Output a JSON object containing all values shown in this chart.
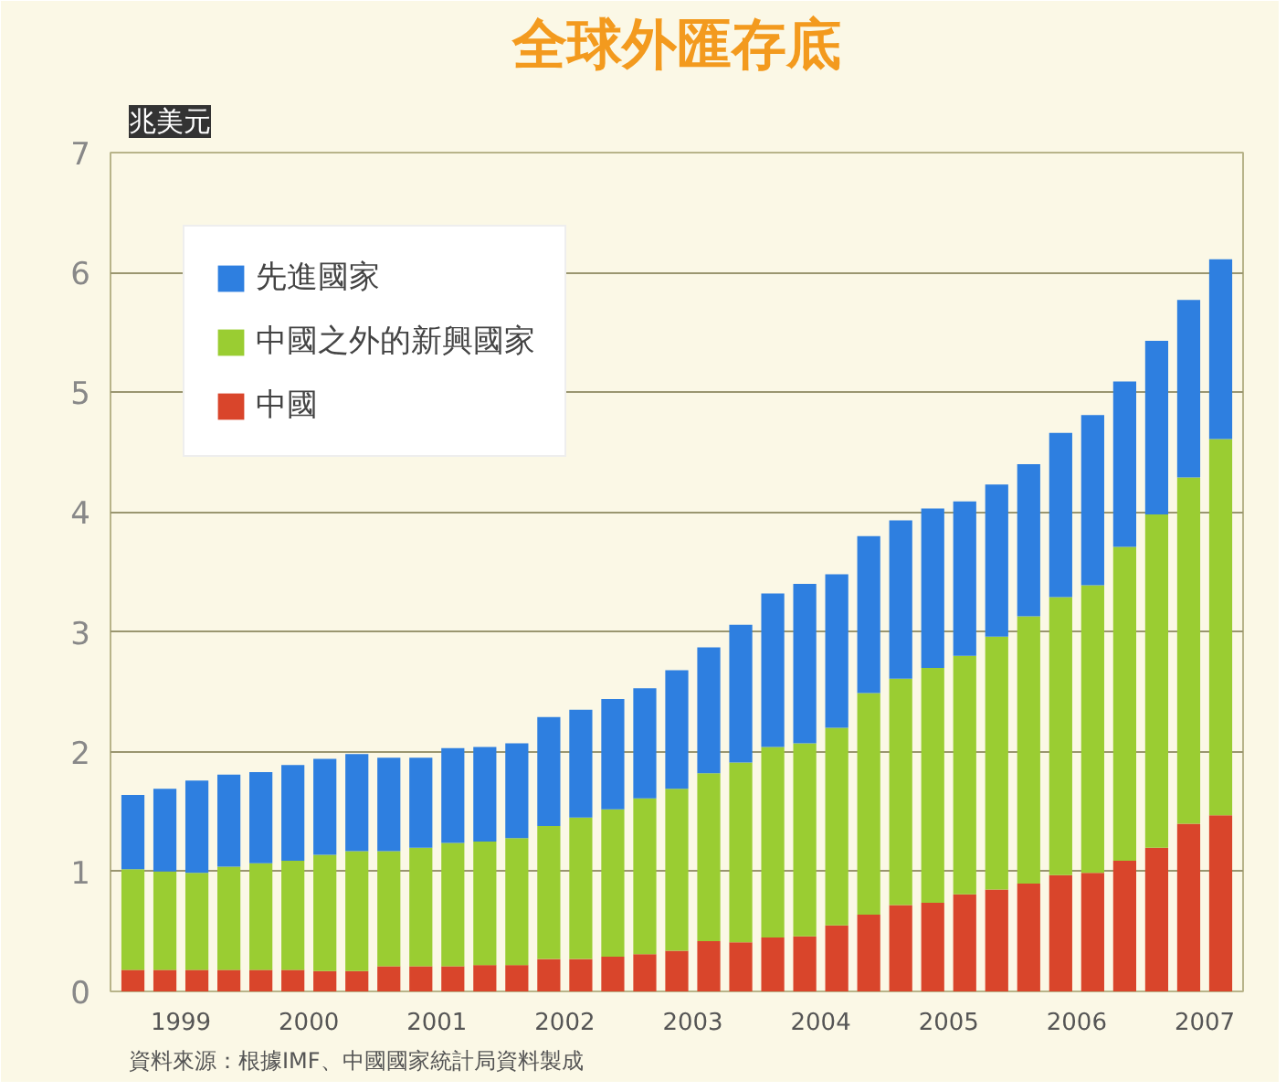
{
  "chart_data": {
    "type": "bar",
    "stacked": true,
    "title": "全球外匯存底",
    "ylabel": "兆美元",
    "x": [
      1999.125,
      1999.375,
      1999.625,
      1999.875,
      2000.125,
      2000.375,
      2000.625,
      2000.875,
      2001.125,
      2001.375,
      2001.625,
      2001.875,
      2002.125,
      2002.375,
      2002.625,
      2002.875,
      2003.125,
      2003.375,
      2003.625,
      2003.875,
      2004.125,
      2004.375,
      2004.625,
      2004.875,
      2005.125,
      2005.375,
      2005.625,
      2005.875,
      2006.125,
      2006.375,
      2006.625,
      2006.875,
      2007.125,
      2007.375,
      2007.625
    ],
    "series": [
      {
        "name": "中國",
        "color": "#d9452b",
        "values": [
          0.18,
          0.18,
          0.18,
          0.18,
          0.18,
          0.18,
          0.17,
          0.17,
          0.21,
          0.21,
          0.21,
          0.22,
          0.22,
          0.27,
          0.27,
          0.29,
          0.31,
          0.34,
          0.42,
          0.41,
          0.45,
          0.46,
          0.55,
          0.64,
          0.72,
          0.74,
          0.81,
          0.85,
          0.9,
          0.97,
          0.99,
          1.09,
          1.2,
          1.4,
          1.47
        ]
      },
      {
        "name": "中國之外的新興國家",
        "color": "#9acd32",
        "values": [
          0.84,
          0.82,
          0.81,
          0.86,
          0.89,
          0.91,
          0.97,
          1.0,
          0.96,
          0.99,
          1.03,
          1.03,
          1.06,
          1.11,
          1.18,
          1.23,
          1.3,
          1.35,
          1.4,
          1.5,
          1.59,
          1.61,
          1.65,
          1.85,
          1.89,
          1.96,
          1.99,
          2.11,
          2.23,
          2.32,
          2.4,
          2.62,
          2.78,
          2.89,
          3.14
        ]
      },
      {
        "name": "先進國家",
        "color": "#2e7fe0",
        "values": [
          0.62,
          0.69,
          0.77,
          0.77,
          0.76,
          0.8,
          0.8,
          0.81,
          0.78,
          0.75,
          0.79,
          0.79,
          0.79,
          0.91,
          0.9,
          0.92,
          0.92,
          0.99,
          1.05,
          1.15,
          1.28,
          1.33,
          1.28,
          1.31,
          1.32,
          1.33,
          1.29,
          1.27,
          1.27,
          1.37,
          1.42,
          1.38,
          1.45,
          1.48,
          1.5
        ]
      }
    ],
    "xlim": [
      1998.95,
      2007.8
    ],
    "xticks": [
      {
        "value": 1999.5,
        "label": "1999"
      },
      {
        "value": 2000.5,
        "label": "2000"
      },
      {
        "value": 2001.5,
        "label": "2001"
      },
      {
        "value": 2002.5,
        "label": "2002"
      },
      {
        "value": 2003.5,
        "label": "2003"
      },
      {
        "value": 2004.5,
        "label": "2004"
      },
      {
        "value": 2005.5,
        "label": "2005"
      },
      {
        "value": 2006.5,
        "label": "2006"
      },
      {
        "value": 2007.5,
        "label": "2007"
      }
    ],
    "ylim": [
      0,
      7
    ],
    "yticks": [
      0,
      1,
      2,
      3,
      4,
      5,
      6,
      7
    ],
    "grid": "y",
    "legend": "top left",
    "annotations": [
      "資料來源：根據IMF、中國國家統計局資料製成"
    ]
  }
}
